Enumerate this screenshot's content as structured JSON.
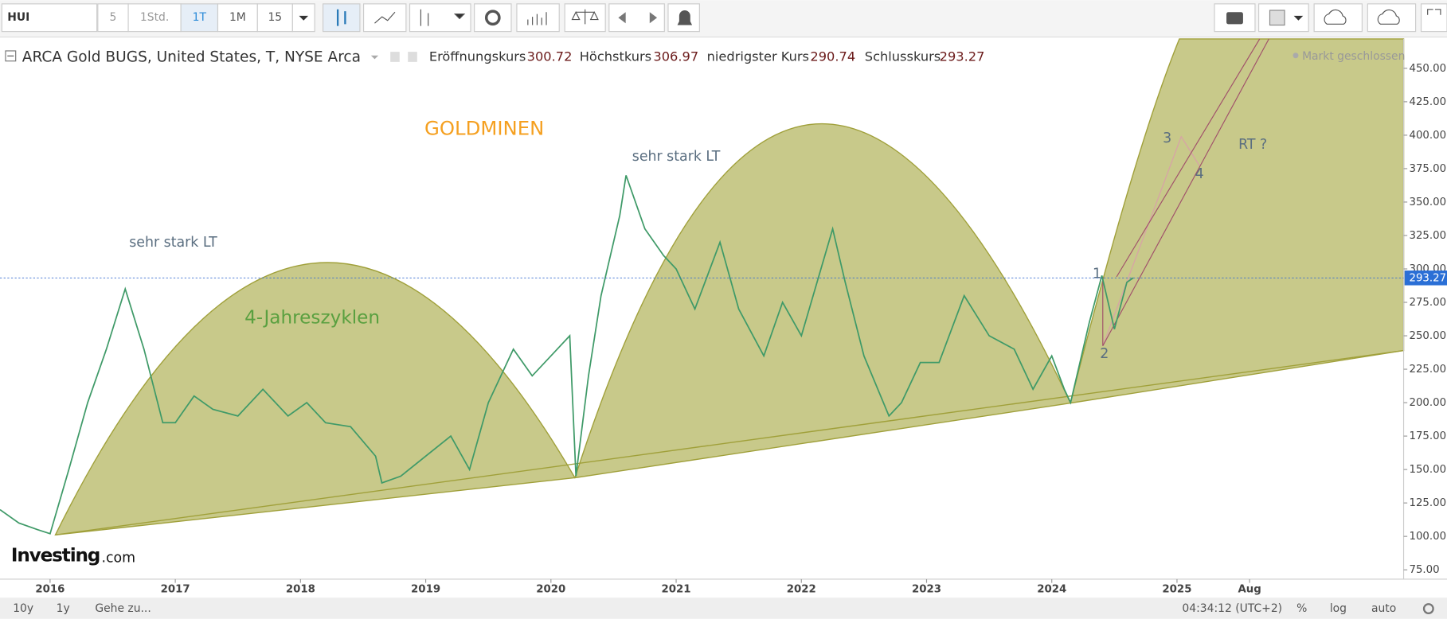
{
  "toolbar": {
    "symbol": "HUI",
    "intervals": [
      "5",
      "1Std.",
      "1T",
      "1M",
      "15"
    ]
  },
  "header": {
    "title": "ARCA Gold BUGS, United States, T, NYSE Arca",
    "open_label": "Eröffnungskurs",
    "open": 300.72,
    "high_label": "Höchstkurs",
    "high": 306.97,
    "low_label": "niedrigster Kurs",
    "low": 290.74,
    "close_label": "Schlusskurs",
    "close": 293.27,
    "status": "Markt geschlossen"
  },
  "logo": {
    "brand": "Investing",
    "suffix": ".com"
  },
  "footer": {
    "ranges": [
      "10y",
      "1y"
    ],
    "goto": "Gehe zu...",
    "time": "04:34:12 (UTC+2)",
    "options": [
      "%",
      "log",
      "auto"
    ]
  },
  "chart_data": {
    "type": "line",
    "annotations": {
      "title": "GOLDMINEN",
      "lt1": "sehr stark LT",
      "lt2": "sehr stark LT",
      "cycle": "4-Jahreszyklen",
      "w1": "1",
      "w2": "2",
      "w3": "3",
      "w4": "4",
      "rt": "RT ?"
    },
    "last_price": 293.27,
    "xlim": [
      2015.6,
      2026.81
    ],
    "xticks": [
      2016,
      2017,
      2018,
      2019,
      2020,
      2021,
      2022,
      2023,
      2024,
      2025,
      {
        "value": 2025.58,
        "label": "Aug"
      }
    ],
    "ylim": [
      68,
      472
    ],
    "yticks": [
      {
        "value": 75,
        "label": "75.00"
      },
      {
        "value": 100,
        "label": "100.00"
      },
      {
        "value": 125,
        "label": "125.00"
      },
      {
        "value": 150,
        "label": "150.00"
      },
      {
        "value": 175,
        "label": "175.00"
      },
      {
        "value": 200,
        "label": "200.00"
      },
      {
        "value": 225,
        "label": "225.00"
      },
      {
        "value": 250,
        "label": "250.00"
      },
      {
        "value": 275,
        "label": "275.00"
      },
      {
        "value": 300,
        "label": "300.00"
      },
      {
        "value": 325,
        "label": "325.00"
      },
      {
        "value": 350,
        "label": "350.00"
      },
      {
        "value": 375,
        "label": "375.00"
      },
      {
        "value": 400,
        "label": "400.00"
      },
      {
        "value": 425,
        "label": "425.00"
      },
      {
        "value": 450,
        "label": "450.00"
      }
    ],
    "series": [
      {
        "color": "#3f9a68",
        "x": [
          2015.6,
          2015.75,
          2015.9,
          2016.0,
          2016.15,
          2016.3,
          2016.45,
          2016.6,
          2016.75,
          2016.9,
          2017.0,
          2017.15,
          2017.3,
          2017.5,
          2017.7,
          2017.9,
          2018.05,
          2018.2,
          2018.4,
          2018.6,
          2018.65,
          2018.8,
          2019.0,
          2019.2,
          2019.35,
          2019.5,
          2019.7,
          2019.85,
          2020.0,
          2020.15,
          2020.2,
          2020.3,
          2020.4,
          2020.55,
          2020.6,
          2020.75,
          2020.9,
          2021.0,
          2021.15,
          2021.35,
          2021.5,
          2021.7,
          2021.85,
          2022.0,
          2022.25,
          2022.35,
          2022.5,
          2022.7,
          2022.8,
          2022.95,
          2023.1,
          2023.3,
          2023.5,
          2023.7,
          2023.85,
          2024.0,
          2024.1,
          2024.15,
          2024.3,
          2024.4,
          2024.5,
          2024.6,
          2024.65
        ],
        "values": [
          120,
          110,
          105,
          102,
          150,
          200,
          240,
          285,
          240,
          185,
          185,
          205,
          195,
          190,
          210,
          190,
          200,
          185,
          182,
          160,
          140,
          145,
          160,
          175,
          150,
          200,
          240,
          220,
          235,
          250,
          145,
          220,
          280,
          340,
          370,
          330,
          310,
          300,
          270,
          320,
          270,
          235,
          275,
          250,
          330,
          290,
          235,
          190,
          200,
          230,
          230,
          280,
          250,
          240,
          210,
          235,
          210,
          200,
          260,
          295,
          255,
          290,
          293.27
        ]
      }
    ]
  }
}
